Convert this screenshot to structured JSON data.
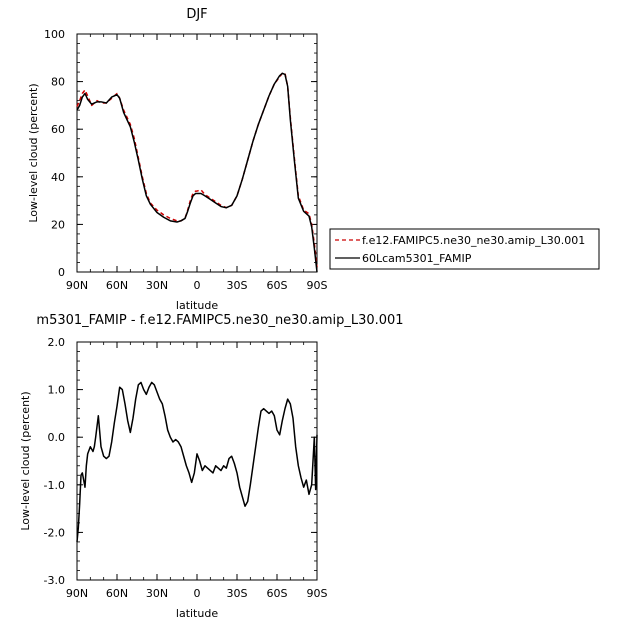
{
  "chart_data": [
    {
      "type": "line",
      "title": "DJF",
      "xlabel": "latitude",
      "ylabel": "Low-level cloud (percent)",
      "xlim": [
        90,
        -90
      ],
      "ylim": [
        0,
        100
      ],
      "xticks": [
        {
          "v": 90,
          "label": "90N"
        },
        {
          "v": 60,
          "label": "60N"
        },
        {
          "v": 30,
          "label": "30N"
        },
        {
          "v": 0,
          "label": "0"
        },
        {
          "v": -30,
          "label": "30S"
        },
        {
          "v": -60,
          "label": "60S"
        },
        {
          "v": -90,
          "label": "90S"
        }
      ],
      "yticks": [
        {
          "v": 0,
          "label": "0"
        },
        {
          "v": 20,
          "label": "20"
        },
        {
          "v": 40,
          "label": "40"
        },
        {
          "v": 60,
          "label": "60"
        },
        {
          "v": 80,
          "label": "80"
        },
        {
          "v": 100,
          "label": "100"
        }
      ],
      "legend_position": "right, outside plot",
      "series": [
        {
          "name": "f.e12.FAMIPC5.ne30_ne30.amip_L30.001",
          "color": "#cc0000",
          "style": "dashed",
          "x": [
            90,
            88,
            86,
            84,
            82,
            79,
            75,
            72,
            68,
            64,
            60,
            58,
            55,
            50,
            47,
            44,
            41,
            38,
            35,
            30,
            25,
            20,
            15,
            12,
            9,
            7,
            5,
            3,
            1,
            0,
            -3,
            -6,
            -10,
            -14,
            -18,
            -22,
            -26,
            -30,
            -34,
            -38,
            -42,
            -46,
            -50,
            -54,
            -58,
            -62,
            -64,
            -66,
            -68,
            -70,
            -73,
            -76,
            -80,
            -84,
            -86,
            -88,
            -90
          ],
          "y": [
            69.5,
            72,
            75,
            76.5,
            74,
            70,
            72,
            71,
            71,
            73,
            75,
            73,
            68,
            62,
            56,
            48,
            40,
            33,
            29,
            26,
            24,
            22.5,
            21.5,
            21.5,
            22.5,
            26,
            30,
            33,
            34,
            34,
            34.5,
            32.5,
            31,
            29.5,
            28,
            27,
            28,
            32,
            39,
            47,
            55,
            62,
            68,
            74,
            79,
            82,
            83.5,
            83.5,
            78,
            65,
            48,
            32,
            26,
            24.5,
            20,
            12,
            2
          ]
        },
        {
          "name": "60Lcam5301_FAMIP",
          "color": "#000000",
          "style": "solid",
          "x": [
            90,
            88,
            86,
            84,
            82,
            79,
            75,
            72,
            68,
            64,
            60,
            58,
            55,
            50,
            47,
            44,
            41,
            38,
            35,
            30,
            25,
            20,
            15,
            12,
            9,
            7,
            5,
            3,
            1,
            0,
            -3,
            -6,
            -10,
            -14,
            -18,
            -22,
            -26,
            -30,
            -34,
            -38,
            -42,
            -46,
            -50,
            -54,
            -58,
            -62,
            -64,
            -66,
            -68,
            -70,
            -73,
            -76,
            -80,
            -84,
            -86,
            -88,
            -90
          ],
          "y": [
            68,
            70,
            73.5,
            75,
            72.5,
            70.5,
            71.5,
            71.5,
            71,
            73.5,
            74.5,
            73,
            67,
            61,
            54.5,
            47,
            39,
            32,
            28.5,
            25,
            23,
            21.5,
            21,
            21.5,
            22.5,
            25.5,
            29,
            32,
            33,
            33,
            33,
            32,
            30.5,
            29,
            27.5,
            27,
            28,
            32,
            39,
            47,
            55,
            62,
            68,
            74,
            79,
            82.5,
            83.5,
            83,
            78,
            64,
            47,
            31,
            25.5,
            23.5,
            19,
            10,
            0
          ]
        }
      ]
    },
    {
      "type": "line",
      "title": "m5301_FAMIP - f.e12.FAMIPC5.ne30_ne30.amip_L30.001",
      "xlabel": "latitude",
      "ylabel": "Low-level cloud (percent)",
      "xlim": [
        90,
        -90
      ],
      "ylim": [
        -3.0,
        2.0
      ],
      "xticks": [
        {
          "v": 90,
          "label": "90N"
        },
        {
          "v": 60,
          "label": "60N"
        },
        {
          "v": 30,
          "label": "30N"
        },
        {
          "v": 0,
          "label": "0"
        },
        {
          "v": -30,
          "label": "30S"
        },
        {
          "v": -60,
          "label": "60S"
        },
        {
          "v": -90,
          "label": "90S"
        }
      ],
      "yticks": [
        {
          "v": -3.0,
          "label": "-3.0"
        },
        {
          "v": -2.0,
          "label": "-2.0"
        },
        {
          "v": -1.0,
          "label": "-1.0"
        },
        {
          "v": 0.0,
          "label": "0.0"
        },
        {
          "v": 1.0,
          "label": "1.0"
        },
        {
          "v": 2.0,
          "label": "2.0"
        }
      ],
      "series": [
        {
          "color": "#000000",
          "style": "solid",
          "x": [
            90,
            89,
            88,
            87,
            86,
            85,
            84,
            83,
            82,
            80,
            78,
            77,
            76,
            74,
            72,
            70,
            68,
            66,
            64,
            62,
            60,
            58,
            56,
            54,
            52,
            50,
            48,
            46,
            44,
            42,
            40,
            38,
            36,
            34,
            32,
            30,
            28,
            26,
            24,
            22,
            20,
            18,
            16,
            14,
            12,
            10,
            8,
            6,
            4,
            2,
            0,
            -2,
            -4,
            -6,
            -8,
            -10,
            -12,
            -14,
            -16,
            -18,
            -20,
            -22,
            -24,
            -26,
            -28,
            -30,
            -32,
            -34,
            -36,
            -38,
            -40,
            -42,
            -44,
            -46,
            -48,
            -50,
            -52,
            -54,
            -56,
            -58,
            -60,
            -62,
            -64,
            -66,
            -68,
            -70,
            -72,
            -74,
            -76,
            -78,
            -80,
            -82,
            -84,
            -86,
            -88,
            -89,
            -90
          ],
          "y": [
            -2.2,
            -1.9,
            -1.4,
            -0.8,
            -0.75,
            -0.9,
            -1.05,
            -0.6,
            -0.35,
            -0.2,
            -0.3,
            -0.2,
            0.0,
            0.45,
            -0.2,
            -0.4,
            -0.45,
            -0.4,
            -0.1,
            0.3,
            0.65,
            1.05,
            1.0,
            0.7,
            0.35,
            0.1,
            0.4,
            0.8,
            1.1,
            1.15,
            1.0,
            0.9,
            1.05,
            1.15,
            1.1,
            0.95,
            0.8,
            0.7,
            0.45,
            0.15,
            0.0,
            -0.1,
            -0.05,
            -0.1,
            -0.2,
            -0.4,
            -0.6,
            -0.75,
            -0.95,
            -0.75,
            -0.35,
            -0.5,
            -0.7,
            -0.6,
            -0.65,
            -0.7,
            -0.75,
            -0.6,
            -0.65,
            -0.7,
            -0.6,
            -0.65,
            -0.45,
            -0.4,
            -0.55,
            -0.75,
            -1.05,
            -1.25,
            -1.45,
            -1.35,
            -1.0,
            -0.6,
            -0.2,
            0.2,
            0.55,
            0.6,
            0.55,
            0.5,
            0.55,
            0.45,
            0.15,
            0.05,
            0.35,
            0.6,
            0.8,
            0.7,
            0.4,
            -0.2,
            -0.6,
            -0.85,
            -1.05,
            -0.9,
            -1.2,
            -1.0,
            0.0,
            -1.1,
            0.05
          ]
        }
      ]
    }
  ]
}
